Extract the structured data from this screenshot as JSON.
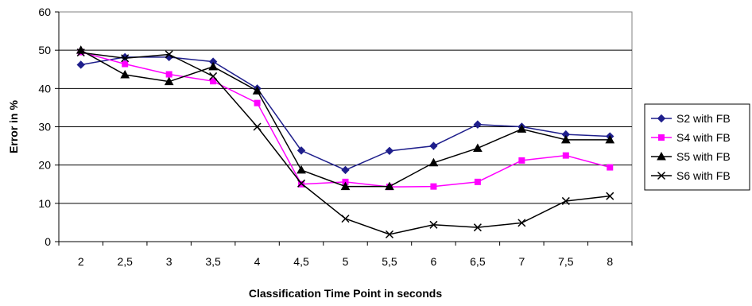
{
  "chart_data": {
    "type": "line",
    "title": "",
    "xlabel": "Classification Time Point in seconds",
    "ylabel": "Error in %",
    "ylim": [
      0,
      60
    ],
    "yticks": [
      "0",
      "10",
      "20",
      "30",
      "40",
      "50",
      "60"
    ],
    "categories": [
      "2",
      "2,5",
      "3",
      "3,5",
      "4",
      "4,5",
      "5",
      "5,5",
      "6",
      "6,5",
      "7",
      "7,5",
      "8"
    ],
    "grid": "horizontal",
    "legend_position": "right",
    "series": [
      {
        "name": "S2 with FB",
        "color": "#1f1f8c",
        "marker": "diamond",
        "values": [
          46.2,
          48.2,
          48.2,
          47.0,
          40.0,
          23.8,
          18.7,
          23.7,
          25.0,
          30.6,
          30.0,
          28.0,
          27.5
        ]
      },
      {
        "name": "S4 with FB",
        "color": "#ff00ff",
        "marker": "square",
        "values": [
          49.5,
          46.4,
          43.7,
          41.9,
          36.2,
          15.0,
          15.6,
          14.3,
          14.4,
          15.6,
          21.2,
          22.5,
          19.4
        ]
      },
      {
        "name": "S5 with FB",
        "color": "#000000",
        "marker": "triangle",
        "values": [
          50.0,
          43.6,
          41.8,
          45.7,
          39.4,
          18.7,
          14.4,
          14.4,
          20.6,
          24.4,
          29.4,
          26.6,
          26.6
        ]
      },
      {
        "name": "S6 with FB",
        "color": "#000000",
        "marker": "x",
        "values": [
          49.4,
          47.9,
          48.9,
          43.2,
          30.0,
          15.2,
          6.0,
          1.9,
          4.4,
          3.7,
          4.9,
          10.6,
          11.9
        ]
      }
    ]
  }
}
